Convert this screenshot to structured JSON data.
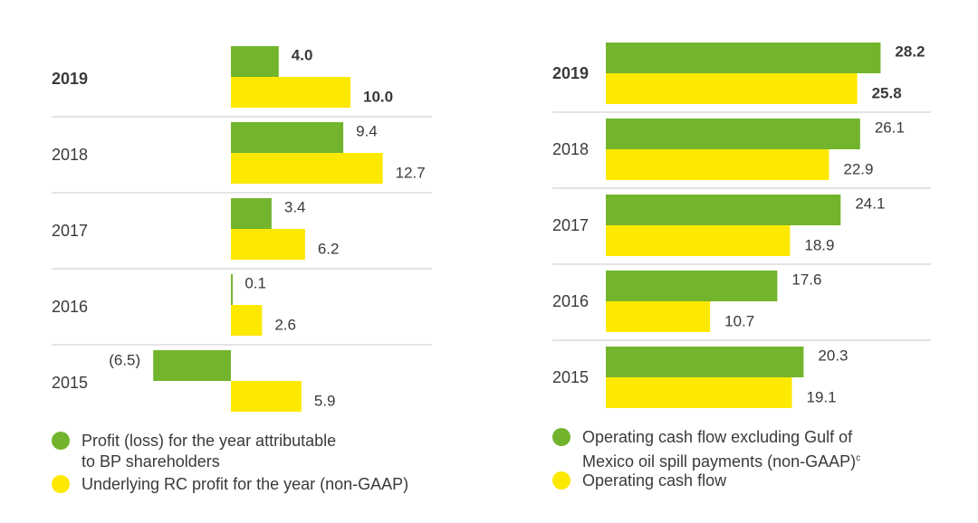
{
  "colors": {
    "green": "#72b52d",
    "yellow": "#fde800",
    "divider": "#c9c9c9",
    "text": "#3a3a3a"
  },
  "chart_data": [
    {
      "type": "bar",
      "orientation": "horizontal",
      "categories": [
        "2019",
        "2018",
        "2017",
        "2016",
        "2015"
      ],
      "highlight_category": "2019",
      "series": [
        {
          "name": "Profit (loss) for the year attributable to BP shareholders",
          "color": "#72b52d",
          "values": [
            4.0,
            9.4,
            3.4,
            0.1,
            -6.5
          ],
          "labels": [
            "4.0",
            "9.4",
            "3.4",
            "0.1",
            "(6.5)"
          ]
        },
        {
          "name": "Underlying RC profit for the year (non-GAAP)",
          "color": "#fde800",
          "values": [
            10.0,
            12.7,
            6.2,
            2.6,
            5.9
          ],
          "labels": [
            "10.0",
            "12.7",
            "6.2",
            "2.6",
            "5.9"
          ]
        }
      ],
      "legend": [
        {
          "color": "#72b52d",
          "line1": "Profit (loss) for the year attributable",
          "line2": "to BP shareholders"
        },
        {
          "color": "#fde800",
          "line1": "Underlying RC profit for the year (non-GAAP)",
          "line2": ""
        }
      ],
      "legend_position": "bottom",
      "grid": false
    },
    {
      "type": "bar",
      "orientation": "horizontal",
      "categories": [
        "2019",
        "2018",
        "2017",
        "2016",
        "2015"
      ],
      "highlight_category": "2019",
      "series": [
        {
          "name": "Operating cash flow excluding Gulf of Mexico oil spill payments (non-GAAP)",
          "color": "#72b52d",
          "values": [
            28.2,
            26.1,
            24.1,
            17.6,
            20.3
          ],
          "labels": [
            "28.2",
            "26.1",
            "24.1",
            "17.6",
            "20.3"
          ]
        },
        {
          "name": "Operating cash flow",
          "color": "#fde800",
          "values": [
            25.8,
            22.9,
            18.9,
            10.7,
            19.1
          ],
          "labels": [
            "25.8",
            "22.9",
            "18.9",
            "10.7",
            "19.1"
          ]
        }
      ],
      "legend": [
        {
          "color": "#72b52d",
          "line1": "Operating cash flow excluding Gulf of",
          "line2": "Mexico oil spill payments (non-GAAP)",
          "sup": "c"
        },
        {
          "color": "#fde800",
          "line1": "Operating cash flow",
          "line2": ""
        }
      ],
      "legend_position": "bottom",
      "grid": false
    }
  ]
}
